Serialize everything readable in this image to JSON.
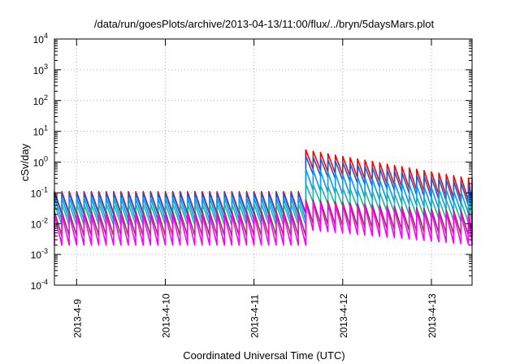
{
  "chart_data": {
    "type": "line",
    "title": "/data/run/goesPlots/archive/2013-04-13/11:00/flux/../bryn/5daysMars.plot",
    "xlabel": "Coordinated Universal Time (UTC)",
    "ylabel": "cSv/day",
    "yscale": "log",
    "ylim": [
      0.0001,
      10000
    ],
    "xlim": [
      "2013-04-08 18:00",
      "2013-04-13 11:00"
    ],
    "grid": true,
    "legend": "none",
    "y_ticks": [
      {
        "base": "10",
        "exp": "-4"
      },
      {
        "base": "10",
        "exp": "-3"
      },
      {
        "base": "10",
        "exp": "-2"
      },
      {
        "base": "10",
        "exp": "-1"
      },
      {
        "base": "10",
        "exp": "0"
      },
      {
        "base": "10",
        "exp": "1"
      },
      {
        "base": "10",
        "exp": "2"
      },
      {
        "base": "10",
        "exp": "3"
      },
      {
        "base": "10",
        "exp": "4"
      }
    ],
    "x_ticks": [
      "2013-4-9",
      "2013-4-10",
      "2013-4-11",
      "2013-4-12",
      "2013-4-13"
    ],
    "sawtooth_period_hours": 2,
    "step_time": "2013-04-11 15:00",
    "series": [
      {
        "color": "#ff0000",
        "pre_high": 0.11,
        "pre_low": 0.022,
        "post_high": 2.5,
        "post_high_end": 0.3,
        "post_low": 0.6,
        "post_low_end": 0.05
      },
      {
        "color": "#2255cc",
        "pre_high": 0.1,
        "pre_low": 0.02,
        "post_high": 1.6,
        "post_high_end": 0.2,
        "post_low": 0.4,
        "post_low_end": 0.035
      },
      {
        "color": "#0099ff",
        "pre_high": 0.07,
        "pre_low": 0.013,
        "post_high": 0.6,
        "post_high_end": 0.1,
        "post_low": 0.12,
        "post_low_end": 0.02
      },
      {
        "color": "#20b2aa",
        "pre_high": 0.045,
        "pre_low": 0.009,
        "post_high": 0.2,
        "post_high_end": 0.05,
        "post_low": 0.05,
        "post_low_end": 0.01
      },
      {
        "color": "#8b3a3a",
        "pre_high": 0.025,
        "pre_low": 0.004,
        "post_high": 0.06,
        "post_high_end": 0.025,
        "post_low": 0.01,
        "post_low_end": 0.004
      },
      {
        "color": "#ff00ff",
        "pre_high": 0.02,
        "pre_low": 0.002,
        "post_high": 0.05,
        "post_high_end": 0.02,
        "post_low": 0.006,
        "post_low_end": 0.002
      }
    ]
  }
}
